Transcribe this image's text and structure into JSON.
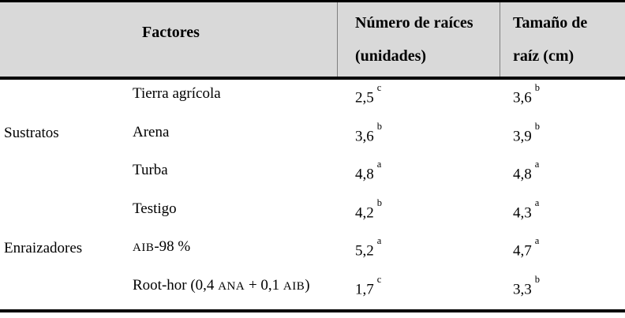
{
  "colors": {
    "header_bg": "#d9d9d9",
    "rule": "#000000",
    "header_divider": "#7f7f7f"
  },
  "table": {
    "header": {
      "factores": "Factores",
      "num_raices_line1": "Número de raíces",
      "num_raices_line2": "(unidades)",
      "tamano_line1": "Tamaño de",
      "tamano_line2": "raíz (cm)"
    },
    "groups": [
      {
        "label": "Sustratos",
        "rows": [
          {
            "factor": "Tierra agrícola",
            "smallcaps": [],
            "num": {
              "value": "2,5",
              "sup": "c"
            },
            "size": {
              "value": "3,6",
              "sup": "b"
            }
          },
          {
            "factor": "Arena",
            "smallcaps": [],
            "num": {
              "value": "3,6",
              "sup": "b"
            },
            "size": {
              "value": "3,9",
              "sup": "b"
            }
          },
          {
            "factor": "Turba",
            "smallcaps": [],
            "num": {
              "value": "4,8",
              "sup": "a"
            },
            "size": {
              "value": "4,8",
              "sup": "a"
            }
          }
        ]
      },
      {
        "label": "Enraizadores",
        "rows": [
          {
            "factor": "Testigo",
            "smallcaps": [],
            "num": {
              "value": "4,2",
              "sup": "b"
            },
            "size": {
              "value": "4,3",
              "sup": "a"
            }
          },
          {
            "factor": "AIB-98 %",
            "smallcaps": [
              "AIB"
            ],
            "num": {
              "value": "5,2",
              "sup": "a"
            },
            "size": {
              "value": "4,7",
              "sup": "a"
            }
          },
          {
            "factor": "Root-hor (0,4 ANA + 0,1 AIB)",
            "smallcaps": [
              "ANA",
              "AIB"
            ],
            "num": {
              "value": "1,7",
              "sup": "c"
            },
            "size": {
              "value": "3,3",
              "sup": "b"
            }
          }
        ]
      }
    ]
  }
}
